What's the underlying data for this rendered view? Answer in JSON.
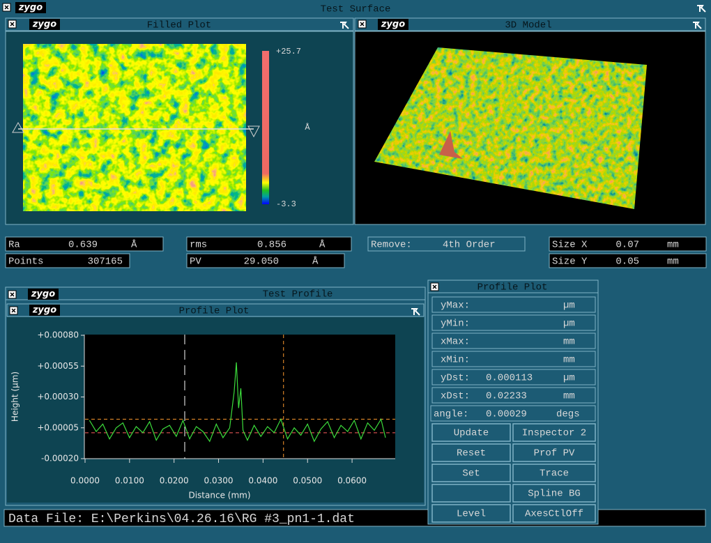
{
  "window_title": "Test Surface",
  "logo": "zygo",
  "filled_plot": {
    "title": "Filled Plot",
    "scale_max": "+25.7",
    "unit": "Å",
    "scale_min": "-3.3"
  },
  "model_3d": {
    "title": "3D Model"
  },
  "stats": [
    {
      "label": "Ra",
      "value": "0.639",
      "unit": "Å"
    },
    {
      "label": "Points",
      "value": "307165"
    },
    {
      "label": "rms",
      "value": "0.856",
      "unit": "Å"
    },
    {
      "label": "PV",
      "value": "29.050",
      "unit": "Å"
    },
    {
      "label": "Remove:",
      "value": "4th Order"
    },
    {
      "label": "Size X",
      "value": "0.07",
      "unit": "mm"
    },
    {
      "label": "Size Y",
      "value": "0.05",
      "unit": "mm"
    }
  ],
  "profile_window": {
    "title": "Test Profile",
    "plot_title": "Profile Plot",
    "chart": {
      "type": "line",
      "y_label": "Height (µm)",
      "x_label": "Distance (mm)",
      "color": "#3cdc3c",
      "xlim": [
        0,
        0.0697
      ],
      "ylim": [
        -0.0002,
        0.0008
      ],
      "xticks": [
        {
          "value": 0,
          "label": "0.0000"
        },
        {
          "value": 0.01,
          "label": "0.0100"
        },
        {
          "value": 0.02,
          "label": "0.0200"
        },
        {
          "value": 0.03,
          "label": "0.0300"
        },
        {
          "value": 0.04,
          "label": "0.0400"
        },
        {
          "value": 0.05,
          "label": "0.0500"
        },
        {
          "value": 0.06,
          "label": "0.0600"
        }
      ],
      "yticks": [
        {
          "value": 0.0008,
          "label": "+0.00080"
        },
        {
          "value": 0.00055,
          "label": "+0.00055"
        },
        {
          "value": 0.0003,
          "label": "+0.00030"
        },
        {
          "value": 5e-05,
          "label": "+0.00005"
        },
        {
          "value": -0.0002,
          "label": "-0.00020"
        }
      ],
      "x": [
        0.001,
        0.0025,
        0.004,
        0.0055,
        0.007,
        0.0085,
        0.01,
        0.0115,
        0.013,
        0.0145,
        0.016,
        0.0175,
        0.019,
        0.0205,
        0.022,
        0.0235,
        0.025,
        0.0265,
        0.028,
        0.0295,
        0.031,
        0.0325,
        0.0335,
        0.034,
        0.0345,
        0.035,
        0.0355,
        0.0365,
        0.038,
        0.0395,
        0.041,
        0.0425,
        0.044,
        0.0455,
        0.047,
        0.0485,
        0.05,
        0.0515,
        0.053,
        0.0545,
        0.056,
        0.0575,
        0.059,
        0.0605,
        0.062,
        0.0635,
        0.065,
        0.0665,
        0.0675
      ],
      "values": [
        0.00011,
        2e-05,
        8e-05,
        -4e-05,
        5e-05,
        9e-05,
        -3e-05,
        6e-05,
        1e-05,
        0.0001,
        -5e-05,
        4e-05,
        7e-05,
        -2e-05,
        0.00011,
        -4e-05,
        6e-05,
        2e-05,
        -6e-05,
        8e-05,
        -3e-05,
        5e-05,
        0.00034,
        0.00058,
        0.00021,
        0.00037,
        3e-05,
        -5e-05,
        7e-05,
        -2e-05,
        6e-05,
        1e-05,
        0.00012,
        -4e-05,
        5e-05,
        -1e-05,
        8e-05,
        -6e-05,
        4e-05,
        0.0001,
        -3e-05,
        7e-05,
        2e-05,
        0.00011,
        -4e-05,
        9e-05,
        3e-05,
        0.00012,
        -3e-05
      ],
      "cursors": {
        "x": [
          0.0224,
          0.0446
        ],
        "x_colors": [
          "#ffffff",
          "#ff9a2e"
        ],
        "y": [
          0.00012,
          1e-05
        ],
        "y_colors": [
          "#ff9a2e",
          "#ff6060"
        ]
      }
    }
  },
  "profile_panel": {
    "title": "Profile Plot",
    "fields": [
      {
        "label": "yMax:",
        "unit": "µm"
      },
      {
        "label": "yMin:",
        "unit": "µm"
      },
      {
        "label": "xMax:",
        "unit": "mm"
      },
      {
        "label": "xMin:",
        "unit": "mm"
      },
      {
        "label": "yDst:",
        "value": "0.000113",
        "unit": "µm"
      },
      {
        "label": "xDst:",
        "value": "0.02233",
        "unit": "mm"
      },
      {
        "label": "angle:",
        "value": "0.00029",
        "unit": "degs"
      }
    ],
    "buttons": [
      "Update",
      "Inspector 2",
      "Reset",
      "Prof PV",
      "Set",
      "Trace",
      null,
      "Spline BG",
      "Level",
      "AxesCtlOff"
    ]
  },
  "data_file": "Data File: E:\\Perkins\\04.26.16\\RG #3_pn1-1.dat"
}
